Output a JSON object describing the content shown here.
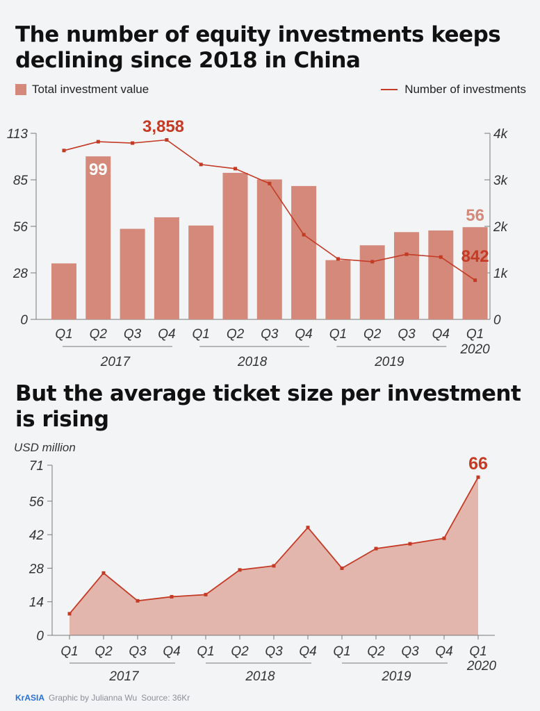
{
  "title1": "The number of equity investments keeps declining since 2018 in China",
  "title2": "But the average ticket size per investment is rising",
  "footer": {
    "brand": "KrASIA",
    "credit": "Graphic by Julianna Wu",
    "source": "Source: 36Kr"
  },
  "colors": {
    "bar": "#d4897a",
    "line": "#c43a24",
    "area": "#e2b5ad",
    "background": "#f3f4f6"
  },
  "chart_data": [
    {
      "type": "bar+line",
      "categories": [
        "Q1",
        "Q2",
        "Q3",
        "Q4",
        "Q1",
        "Q2",
        "Q3",
        "Q4",
        "Q1",
        "Q2",
        "Q3",
        "Q4",
        "Q1"
      ],
      "year_groups": [
        {
          "label": "2017",
          "from": 0,
          "to": 3
        },
        {
          "label": "2018",
          "from": 4,
          "to": 7
        },
        {
          "label": "2019",
          "from": 8,
          "to": 11
        },
        {
          "label": "2020",
          "from": 12,
          "to": 12
        }
      ],
      "series": [
        {
          "name": "Total investment value",
          "type": "bar",
          "axis": "left",
          "values": [
            34,
            99,
            55,
            62,
            57,
            89,
            85,
            81,
            36,
            45,
            53,
            54,
            56
          ]
        },
        {
          "name": "Number of investments",
          "type": "line",
          "axis": "right",
          "values": [
            3630,
            3820,
            3790,
            3858,
            3330,
            3240,
            2920,
            1820,
            1300,
            1240,
            1400,
            1340,
            842
          ]
        }
      ],
      "left_ticks": [
        "0",
        "28",
        "56",
        "85",
        "113"
      ],
      "left_ylim": [
        0,
        113
      ],
      "right_ticks": [
        "0",
        "1k",
        "2k",
        "3k",
        "4k"
      ],
      "right_ylim": [
        0,
        4000
      ],
      "annotations": [
        {
          "text": "99",
          "series": 0,
          "index": 1
        },
        {
          "text": "56",
          "series": 0,
          "index": 12
        },
        {
          "text": "3,858",
          "series": 1,
          "index": 3
        },
        {
          "text": "842",
          "series": 1,
          "index": 12
        }
      ],
      "legend_position": "top"
    },
    {
      "type": "area",
      "ylabel": "USD million",
      "categories": [
        "Q1",
        "Q2",
        "Q3",
        "Q4",
        "Q1",
        "Q2",
        "Q3",
        "Q4",
        "Q1",
        "Q2",
        "Q3",
        "Q4",
        "Q1"
      ],
      "year_groups": [
        {
          "label": "2017",
          "from": 0,
          "to": 3
        },
        {
          "label": "2018",
          "from": 4,
          "to": 7
        },
        {
          "label": "2019",
          "from": 8,
          "to": 11
        },
        {
          "label": "2020",
          "from": 12,
          "to": 12
        }
      ],
      "values": [
        9,
        26,
        14.4,
        16.1,
        17,
        27.3,
        29,
        45,
        28,
        36.2,
        38.2,
        40.5,
        66
      ],
      "ticks": [
        "0",
        "14",
        "28",
        "42",
        "56",
        "71"
      ],
      "ylim": [
        0,
        71
      ],
      "annotations": [
        {
          "text": "66",
          "index": 12
        }
      ]
    }
  ]
}
